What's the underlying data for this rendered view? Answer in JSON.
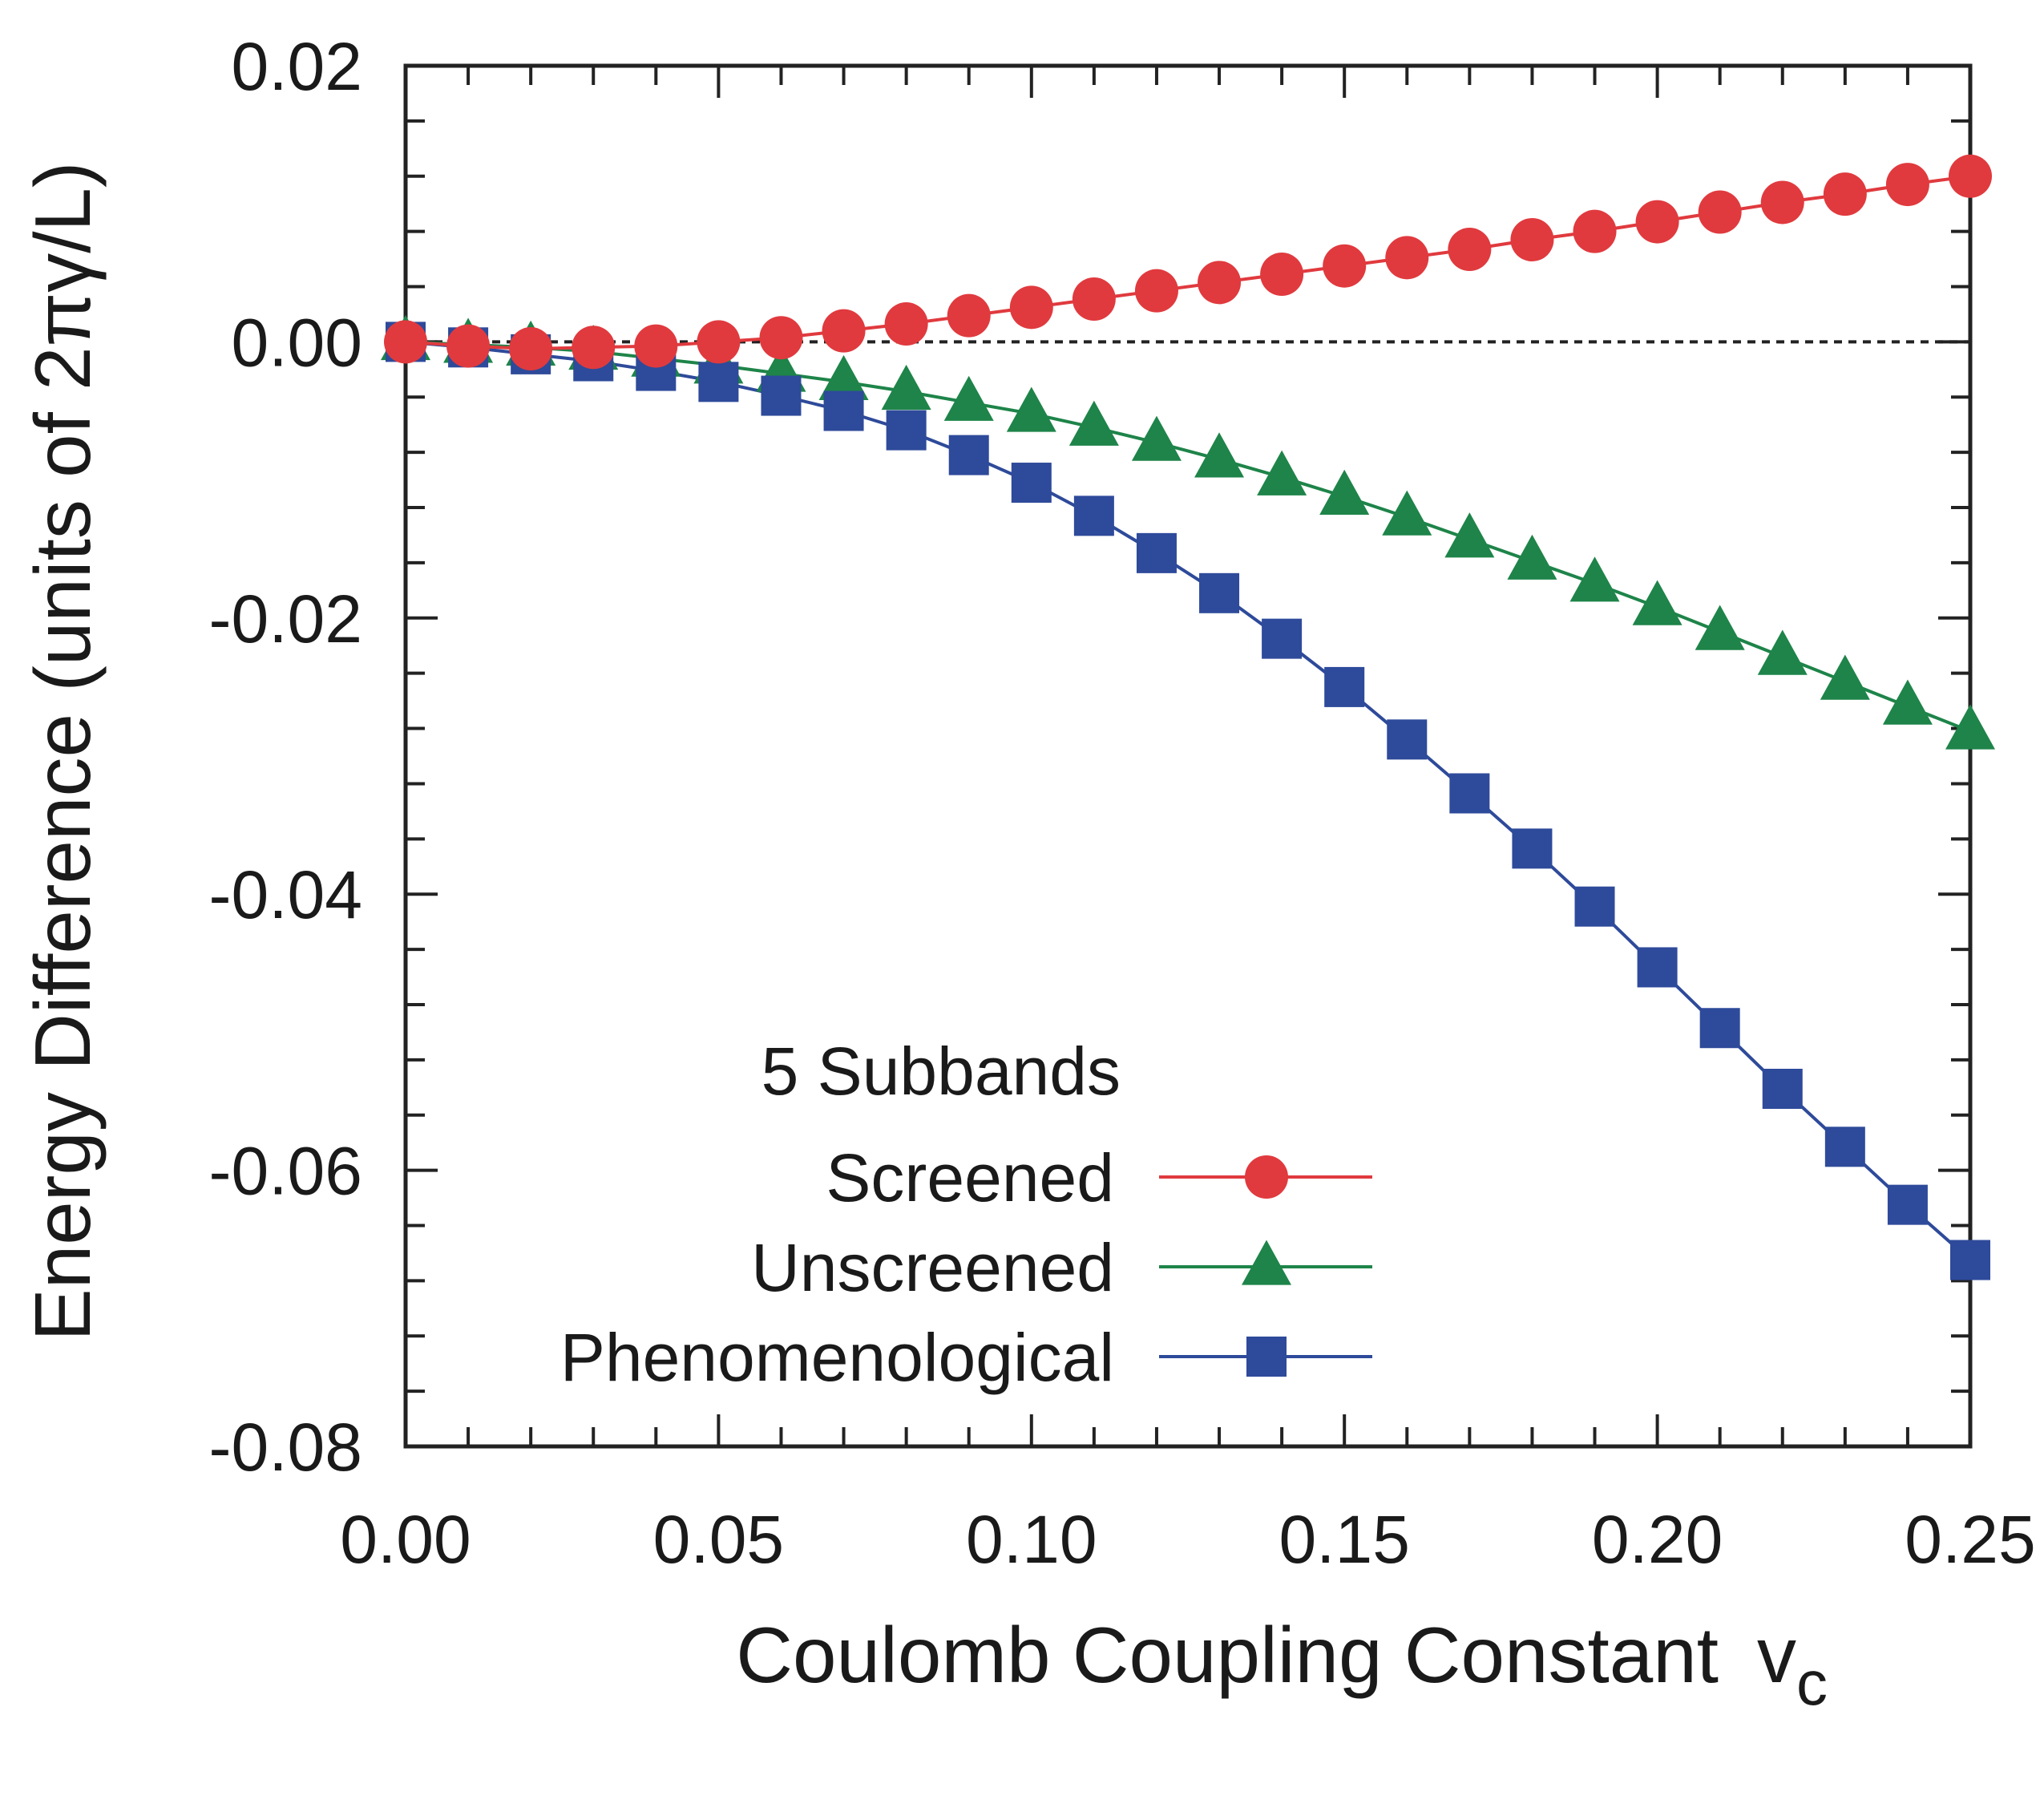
{
  "chart_data": {
    "type": "line",
    "title": "",
    "xlabel": "Coulomb Coupling Constant",
    "xlabel_symbol": "v",
    "xlabel_subscript": "c",
    "ylabel": "Energy Difference  (units of 2πγ/L)",
    "xlim": [
      0,
      0.25
    ],
    "ylim": [
      -0.08,
      0.02
    ],
    "x_ticks": [
      0,
      0.05,
      0.1,
      0.15,
      0.2,
      0.25
    ],
    "x_tick_labels": [
      "0.00",
      "0.05",
      "0.10",
      "0.15",
      "0.20",
      "0.25"
    ],
    "y_ticks": [
      0.02,
      0.0,
      -0.02,
      -0.04,
      -0.06,
      -0.08
    ],
    "y_tick_labels": [
      "0.02",
      "0.00",
      "-0.02",
      "-0.04",
      "-0.06",
      "-0.08"
    ],
    "x_minor_step": 0.01,
    "y_minor_step": 0.004,
    "zero_reference_line": true,
    "grid": false,
    "legend_title": "5 Subbands",
    "legend_position": "bottom-center",
    "x": [
      0,
      0.01,
      0.02,
      0.03,
      0.04,
      0.05,
      0.06,
      0.07,
      0.08,
      0.09,
      0.1,
      0.11,
      0.12,
      0.13,
      0.14,
      0.15,
      0.16,
      0.17,
      0.18,
      0.19,
      0.2,
      0.21,
      0.22,
      0.23,
      0.24,
      0.25
    ],
    "series": [
      {
        "name": "Screened",
        "color": "#e03a3e",
        "marker": "circle",
        "values": [
          0.0,
          -0.0003,
          -0.0005,
          -0.0004,
          -0.0003,
          0.0,
          0.0003,
          0.0008,
          0.0013,
          0.0019,
          0.0025,
          0.0031,
          0.0037,
          0.0043,
          0.0049,
          0.0055,
          0.0061,
          0.0067,
          0.0074,
          0.008,
          0.0087,
          0.0094,
          0.0101,
          0.0107,
          0.0114,
          0.012
        ]
      },
      {
        "name": "Unscreened",
        "color": "#1e8449",
        "marker": "triangle",
        "values": [
          0.0,
          -0.0002,
          -0.0004,
          -0.0007,
          -0.0012,
          -0.0017,
          -0.0023,
          -0.0029,
          -0.0036,
          -0.0044,
          -0.0052,
          -0.0062,
          -0.0073,
          -0.0085,
          -0.0098,
          -0.0112,
          -0.0127,
          -0.0143,
          -0.0159,
          -0.0175,
          -0.0192,
          -0.021,
          -0.0228,
          -0.0246,
          -0.0264,
          -0.0282
        ]
      },
      {
        "name": "Phenomenological",
        "color": "#2e4a9a",
        "marker": "square",
        "values": [
          0.0,
          -0.0004,
          -0.0009,
          -0.0014,
          -0.0021,
          -0.0029,
          -0.0039,
          -0.005,
          -0.0064,
          -0.0082,
          -0.0102,
          -0.0126,
          -0.0153,
          -0.0182,
          -0.0215,
          -0.025,
          -0.0288,
          -0.0327,
          -0.0367,
          -0.0409,
          -0.0453,
          -0.0497,
          -0.0541,
          -0.0583,
          -0.0625,
          -0.0665
        ]
      }
    ]
  }
}
